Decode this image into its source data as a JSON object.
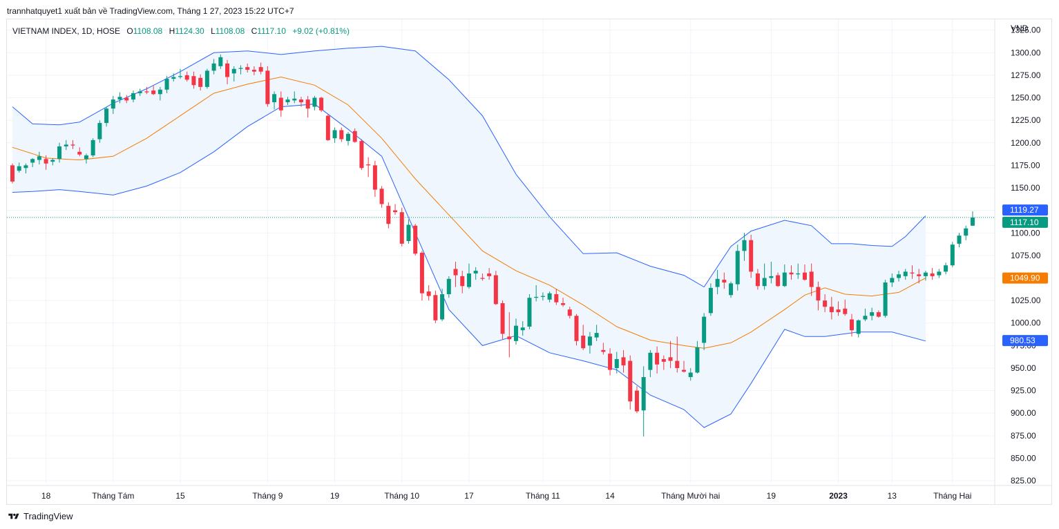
{
  "header": {
    "caption": "trannhatquyet1 xuất bản về TradingView.com, Tháng 1 27, 2023 15:22 UTC+7"
  },
  "legend": {
    "symbol": "VIETNAM INDEX, 1D, HOSE",
    "o_label": "O",
    "o_value": "1108.08",
    "h_label": "H",
    "h_value": "1124.30",
    "l_label": "L",
    "l_value": "1108.08",
    "c_label": "C",
    "c_value": "1117.10",
    "change": "+9.02 (+0.81%)"
  },
  "footer": {
    "brand": "TradingView"
  },
  "colors": {
    "up": "#089981",
    "down": "#f23645",
    "band_line": "#2962ff",
    "basis": "#f57c00",
    "band_fill": "#f0f6fe",
    "grid": "#f0f3fa",
    "text": "#131722"
  },
  "chart_data": {
    "type": "candlestick",
    "currency": "VND",
    "y_axis": {
      "ticks": [
        825,
        850,
        875,
        900,
        925,
        950,
        975,
        1000,
        1025,
        1050,
        1075,
        1100,
        1125,
        1150,
        1175,
        1200,
        1225,
        1250,
        1275,
        1300,
        1325
      ],
      "tick_labels": [
        "825.00",
        "850.00",
        "875.00",
        "900.00",
        "925.00",
        "950.00",
        "975.00",
        "1000.00",
        "1025.00",
        "1050.00",
        "1075.00",
        "1100.00",
        "1125.00",
        "1150.00",
        "1175.00",
        "1200.00",
        "1225.00",
        "1250.00",
        "1275.00",
        "1300.00",
        "1325.00"
      ],
      "range": [
        822,
        1337
      ]
    },
    "x_axis": {
      "labels": [
        {
          "text": "18",
          "bar": 5
        },
        {
          "text": "Tháng Tám",
          "bar": 15
        },
        {
          "text": "15",
          "bar": 25
        },
        {
          "text": "Tháng 9",
          "bar": 38
        },
        {
          "text": "19",
          "bar": 48
        },
        {
          "text": "Tháng 10",
          "bar": 58
        },
        {
          "text": "17",
          "bar": 68
        },
        {
          "text": "Tháng 11",
          "bar": 79
        },
        {
          "text": "14",
          "bar": 89
        },
        {
          "text": "Tháng Mười hai",
          "bar": 101
        },
        {
          "text": "19",
          "bar": 113
        },
        {
          "text": "2023",
          "bar": 123,
          "bold": true
        },
        {
          "text": "13",
          "bar": 131
        },
        {
          "text": "Tháng Hai",
          "bar": 140
        }
      ]
    },
    "last_price": 1117.1,
    "price_tags": [
      {
        "label": "1119.27",
        "value": 1119.27,
        "color": "#2962ff"
      },
      {
        "label": "1117.10",
        "value": 1117.1,
        "color": "#089981"
      },
      {
        "label": "1049.90",
        "value": 1049.9,
        "color": "#f57c00"
      },
      {
        "label": "980.53",
        "value": 980.53,
        "color": "#2962ff"
      }
    ],
    "indicator": "Bollinger Bands",
    "candles": [
      [
        1175,
        1177,
        1155,
        1157
      ],
      [
        1169,
        1178,
        1167,
        1174
      ],
      [
        1172,
        1177,
        1166,
        1175
      ],
      [
        1178,
        1183,
        1173,
        1182
      ],
      [
        1181,
        1190,
        1176,
        1185
      ],
      [
        1182,
        1186,
        1170,
        1177
      ],
      [
        1179,
        1183,
        1175,
        1181
      ],
      [
        1182,
        1200,
        1178,
        1196
      ],
      [
        1196,
        1203,
        1192,
        1198
      ],
      [
        1198,
        1203,
        1193,
        1197
      ],
      [
        1190,
        1195,
        1185,
        1187
      ],
      [
        1182,
        1188,
        1177,
        1186
      ],
      [
        1186,
        1205,
        1184,
        1203
      ],
      [
        1204,
        1225,
        1200,
        1222
      ],
      [
        1222,
        1240,
        1218,
        1238
      ],
      [
        1238,
        1252,
        1232,
        1248
      ],
      [
        1248,
        1256,
        1244,
        1251
      ],
      [
        1250,
        1253,
        1244,
        1247
      ],
      [
        1248,
        1258,
        1245,
        1255
      ],
      [
        1255,
        1260,
        1252,
        1257
      ],
      [
        1257,
        1262,
        1254,
        1256
      ],
      [
        1258,
        1263,
        1253,
        1254
      ],
      [
        1254,
        1262,
        1247,
        1259
      ],
      [
        1259,
        1274,
        1255,
        1271
      ],
      [
        1271,
        1277,
        1268,
        1273
      ],
      [
        1273,
        1282,
        1271,
        1274
      ],
      [
        1275,
        1279,
        1268,
        1270
      ],
      [
        1274,
        1279,
        1260,
        1264
      ],
      [
        1272,
        1276,
        1258,
        1262
      ],
      [
        1262,
        1282,
        1260,
        1280
      ],
      [
        1280,
        1293,
        1276,
        1288
      ],
      [
        1285,
        1298,
        1282,
        1295
      ],
      [
        1288,
        1292,
        1265,
        1273
      ],
      [
        1277,
        1285,
        1268,
        1282
      ],
      [
        1282,
        1286,
        1276,
        1283
      ],
      [
        1284,
        1288,
        1278,
        1281
      ],
      [
        1281,
        1285,
        1275,
        1279
      ],
      [
        1284,
        1289,
        1276,
        1279
      ],
      [
        1280,
        1285,
        1240,
        1243
      ],
      [
        1245,
        1257,
        1237,
        1254
      ],
      [
        1250,
        1257,
        1229,
        1236
      ],
      [
        1245,
        1251,
        1242,
        1248
      ],
      [
        1247,
        1257,
        1244,
        1249
      ],
      [
        1248,
        1251,
        1240,
        1245
      ],
      [
        1248,
        1252,
        1228,
        1238
      ],
      [
        1240,
        1252,
        1236,
        1250
      ],
      [
        1250,
        1251,
        1234,
        1236
      ],
      [
        1230,
        1232,
        1202,
        1203
      ],
      [
        1205,
        1217,
        1200,
        1214
      ],
      [
        1214,
        1217,
        1201,
        1204
      ],
      [
        1202,
        1212,
        1197,
        1210
      ],
      [
        1213,
        1216,
        1200,
        1201
      ],
      [
        1202,
        1204,
        1170,
        1172
      ],
      [
        1176,
        1184,
        1162,
        1175
      ],
      [
        1175,
        1180,
        1140,
        1148
      ],
      [
        1149,
        1152,
        1128,
        1132
      ],
      [
        1130,
        1134,
        1105,
        1110
      ],
      [
        1125,
        1132,
        1120,
        1123
      ],
      [
        1123,
        1128,
        1085,
        1088
      ],
      [
        1091,
        1115,
        1088,
        1109
      ],
      [
        1108,
        1110,
        1075,
        1077
      ],
      [
        1078,
        1080,
        1025,
        1033
      ],
      [
        1035,
        1042,
        1025,
        1030
      ],
      [
        1031,
        1036,
        1000,
        1003
      ],
      [
        1004,
        1038,
        1002,
        1032
      ],
      [
        1032,
        1052,
        1028,
        1049
      ],
      [
        1060,
        1068,
        1040,
        1053
      ],
      [
        1052,
        1058,
        1033,
        1041
      ],
      [
        1040,
        1066,
        1038,
        1055
      ],
      [
        1055,
        1062,
        1048,
        1058
      ],
      [
        1050,
        1055,
        1047,
        1049
      ],
      [
        1055,
        1061,
        1048,
        1052
      ],
      [
        1053,
        1058,
        1020,
        1021
      ],
      [
        1022,
        1025,
        982,
        988
      ],
      [
        985,
        1012,
        962,
        982
      ],
      [
        980,
        1005,
        976,
        997
      ],
      [
        992,
        1002,
        986,
        995
      ],
      [
        996,
        1032,
        993,
        1028
      ],
      [
        1028,
        1042,
        1024,
        1029
      ],
      [
        1029,
        1034,
        1025,
        1030
      ],
      [
        1026,
        1035,
        1023,
        1033
      ],
      [
        1032,
        1038,
        1020,
        1023
      ],
      [
        1022,
        1028,
        1018,
        1020
      ],
      [
        1015,
        1018,
        1005,
        1008
      ],
      [
        1008,
        1010,
        975,
        980
      ],
      [
        986,
        998,
        970,
        972
      ],
      [
        975,
        990,
        966,
        985
      ],
      [
        984,
        998,
        980,
        989
      ],
      [
        970,
        978,
        965,
        968
      ],
      [
        966,
        972,
        942,
        948
      ],
      [
        950,
        968,
        944,
        960
      ],
      [
        962,
        970,
        945,
        953
      ],
      [
        958,
        964,
        904,
        913
      ],
      [
        925,
        930,
        900,
        902
      ],
      [
        903,
        952,
        874,
        940
      ],
      [
        948,
        970,
        940,
        967
      ],
      [
        967,
        974,
        944,
        954
      ],
      [
        960,
        964,
        948,
        957
      ],
      [
        962,
        980,
        950,
        958
      ],
      [
        958,
        985,
        945,
        950
      ],
      [
        948,
        958,
        945,
        946
      ],
      [
        940,
        950,
        936,
        945
      ],
      [
        945,
        980,
        944,
        973
      ],
      [
        978,
        1011,
        970,
        1007
      ],
      [
        1011,
        1044,
        1008,
        1039
      ],
      [
        1040,
        1059,
        1032,
        1049
      ],
      [
        1048,
        1056,
        1038,
        1045
      ],
      [
        1031,
        1046,
        1028,
        1044
      ],
      [
        1043,
        1087,
        1036,
        1080
      ],
      [
        1080,
        1100,
        1069,
        1092
      ],
      [
        1092,
        1098,
        1050,
        1057
      ],
      [
        1055,
        1060,
        1037,
        1041
      ],
      [
        1041,
        1066,
        1037,
        1050
      ],
      [
        1050,
        1068,
        1044,
        1052
      ],
      [
        1053,
        1056,
        1040,
        1041
      ],
      [
        1041,
        1065,
        1040,
        1056
      ],
      [
        1056,
        1064,
        1048,
        1054
      ],
      [
        1054,
        1066,
        1049,
        1055
      ],
      [
        1056,
        1065,
        1047,
        1048
      ],
      [
        1057,
        1066,
        1030,
        1040
      ],
      [
        1040,
        1046,
        1014,
        1025
      ],
      [
        1025,
        1032,
        1012,
        1018
      ],
      [
        1018,
        1029,
        1004,
        1012
      ],
      [
        1015,
        1024,
        1008,
        1012
      ],
      [
        1016,
        1026,
        1008,
        1010
      ],
      [
        1004,
        1010,
        985,
        992
      ],
      [
        988,
        1004,
        984,
        1003
      ],
      [
        1004,
        1016,
        1002,
        1008
      ],
      [
        1008,
        1017,
        1003,
        1012
      ],
      [
        1012,
        1014,
        1006,
        1007
      ],
      [
        1008,
        1048,
        1006,
        1045
      ],
      [
        1045,
        1055,
        1040,
        1050
      ],
      [
        1050,
        1058,
        1046,
        1054
      ],
      [
        1052,
        1060,
        1048,
        1057
      ],
      [
        1056,
        1064,
        1049,
        1055
      ],
      [
        1054,
        1060,
        1044,
        1052
      ],
      [
        1052,
        1058,
        1047,
        1056
      ],
      [
        1055,
        1061,
        1048,
        1052
      ],
      [
        1053,
        1060,
        1050,
        1057
      ],
      [
        1057,
        1067,
        1054,
        1064
      ],
      [
        1064,
        1090,
        1062,
        1087
      ],
      [
        1088,
        1100,
        1084,
        1097
      ],
      [
        1097,
        1108,
        1092,
        1105
      ],
      [
        1108,
        1124,
        1108,
        1117
      ]
    ],
    "basis": [
      [
        0,
        1195
      ],
      [
        5,
        1183
      ],
      [
        10,
        1181
      ],
      [
        15,
        1185
      ],
      [
        20,
        1205
      ],
      [
        25,
        1230
      ],
      [
        30,
        1255
      ],
      [
        35,
        1265
      ],
      [
        40,
        1273
      ],
      [
        45,
        1264
      ],
      [
        50,
        1242
      ],
      [
        55,
        1205
      ],
      [
        60,
        1160
      ],
      [
        65,
        1120
      ],
      [
        70,
        1080
      ],
      [
        75,
        1058
      ],
      [
        80,
        1042
      ],
      [
        85,
        1020
      ],
      [
        90,
        996
      ],
      [
        95,
        981
      ],
      [
        100,
        975
      ],
      [
        103,
        972
      ],
      [
        107,
        978
      ],
      [
        110,
        990
      ],
      [
        115,
        1015
      ],
      [
        118,
        1031
      ],
      [
        121,
        1039
      ],
      [
        124,
        1032
      ],
      [
        128,
        1030
      ],
      [
        132,
        1034
      ],
      [
        136,
        1050
      ]
    ],
    "upper": [
      [
        0,
        1240
      ],
      [
        3,
        1221
      ],
      [
        7,
        1220
      ],
      [
        10,
        1223
      ],
      [
        15,
        1244
      ],
      [
        20,
        1260
      ],
      [
        25,
        1279
      ],
      [
        30,
        1300
      ],
      [
        35,
        1302
      ],
      [
        40,
        1298
      ],
      [
        45,
        1302
      ],
      [
        50,
        1305
      ],
      [
        55,
        1307
      ],
      [
        60,
        1302
      ],
      [
        65,
        1270
      ],
      [
        70,
        1230
      ],
      [
        75,
        1165
      ],
      [
        80,
        1118
      ],
      [
        85,
        1077
      ],
      [
        90,
        1078
      ],
      [
        95,
        1063
      ],
      [
        100,
        1053
      ],
      [
        103,
        1040
      ],
      [
        107,
        1085
      ],
      [
        110,
        1102
      ],
      [
        115,
        1114
      ],
      [
        119,
        1108
      ],
      [
        122,
        1088
      ],
      [
        125,
        1088
      ],
      [
        128,
        1086
      ],
      [
        131,
        1085
      ],
      [
        133,
        1096
      ],
      [
        136,
        1119
      ]
    ],
    "lower": [
      [
        0,
        1145
      ],
      [
        3,
        1146
      ],
      [
        7,
        1148
      ],
      [
        10,
        1146
      ],
      [
        15,
        1142
      ],
      [
        20,
        1152
      ],
      [
        25,
        1167
      ],
      [
        30,
        1190
      ],
      [
        35,
        1218
      ],
      [
        40,
        1240
      ],
      [
        45,
        1243
      ],
      [
        50,
        1215
      ],
      [
        55,
        1185
      ],
      [
        60,
        1100
      ],
      [
        65,
        1015
      ],
      [
        70,
        975
      ],
      [
        75,
        986
      ],
      [
        80,
        967
      ],
      [
        85,
        958
      ],
      [
        90,
        948
      ],
      [
        95,
        920
      ],
      [
        100,
        904
      ],
      [
        103,
        884
      ],
      [
        107,
        899
      ],
      [
        110,
        933
      ],
      [
        115,
        993
      ],
      [
        118,
        985
      ],
      [
        121,
        985
      ],
      [
        126,
        990
      ],
      [
        131,
        990
      ],
      [
        136,
        980
      ]
    ]
  }
}
